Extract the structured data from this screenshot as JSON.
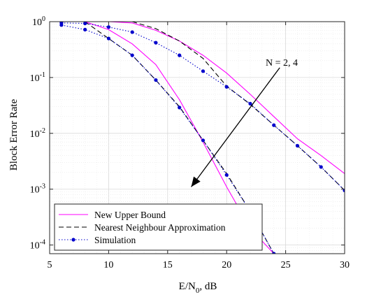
{
  "chart_data": {
    "type": "line",
    "xlabel": "E/N",
    "xlabel_sub": "0",
    "xlabel_suffix": ", dB",
    "ylabel": "Block Error Rate",
    "xlim": [
      5,
      30
    ],
    "ylim": [
      7e-05,
      1
    ],
    "yscale": "log",
    "grid": true,
    "x_ticks": [
      5,
      10,
      15,
      20,
      25,
      30
    ],
    "y_ticks": [
      {
        "value": 1,
        "base": "10",
        "exp": "0"
      },
      {
        "value": 0.1,
        "base": "10",
        "exp": "-1"
      },
      {
        "value": 0.01,
        "base": "10",
        "exp": "-2"
      },
      {
        "value": 0.001,
        "base": "10",
        "exp": "-3"
      },
      {
        "value": 0.0001,
        "base": "10",
        "exp": "-4"
      }
    ],
    "legend": {
      "placement": "bottom-left",
      "entries": [
        {
          "label": "New Upper Bound",
          "color": "#ff00ff",
          "style": "solid",
          "marker": false
        },
        {
          "label": "Nearest Neighbour Approximation",
          "color": "#000000",
          "style": "dashed",
          "marker": false
        },
        {
          "label": "Simulation",
          "color": "#0000cc",
          "style": "dotted",
          "marker": true
        }
      ]
    },
    "annotation": {
      "text": "N = 2, 4",
      "arrow_from": [
        24.5,
        0.15
      ],
      "arrow_to": [
        17.0,
        0.0011
      ]
    },
    "series": [
      {
        "group": "New Upper Bound",
        "color": "#ff00ff",
        "style": "solid",
        "marker": false,
        "x": [
          5,
          8,
          10,
          12,
          14,
          16,
          18,
          20,
          22,
          24,
          25
        ],
        "y": [
          1,
          1,
          0.72,
          0.4,
          0.17,
          0.04,
          0.007,
          0.0011,
          0.0002,
          7e-05,
          4e-05
        ]
      },
      {
        "group": "New Upper Bound",
        "color": "#ff00ff",
        "style": "solid",
        "marker": false,
        "x": [
          5,
          10,
          12,
          14,
          16,
          18,
          20,
          22,
          24,
          26,
          28,
          30
        ],
        "y": [
          1,
          1,
          0.95,
          0.7,
          0.45,
          0.25,
          0.12,
          0.05,
          0.02,
          0.008,
          0.004,
          0.0019
        ]
      },
      {
        "group": "Nearest Neighbour Approximation",
        "color": "#000000",
        "style": "dashed",
        "marker": false,
        "x": [
          8,
          10,
          12,
          14,
          16,
          18,
          20,
          22,
          24
        ],
        "y": [
          1,
          0.5,
          0.25,
          0.09,
          0.03,
          0.0075,
          0.0019,
          0.0004,
          7e-05
        ]
      },
      {
        "group": "Nearest Neighbour Approximation",
        "color": "#000000",
        "style": "dashed",
        "marker": false,
        "x": [
          12,
          14,
          16,
          18,
          20,
          22,
          24,
          26,
          28,
          30
        ],
        "y": [
          1,
          0.75,
          0.45,
          0.22,
          0.07,
          0.033,
          0.014,
          0.006,
          0.0025,
          0.00095
        ]
      },
      {
        "group": "Simulation",
        "color": "#0000cc",
        "style": "dotted",
        "marker": true,
        "x": [
          6,
          8,
          10,
          12,
          14,
          16,
          18,
          20,
          22,
          24
        ],
        "y": [
          0.87,
          0.72,
          0.5,
          0.25,
          0.09,
          0.029,
          0.0075,
          0.0018,
          0.0004,
          7e-05
        ]
      },
      {
        "group": "Simulation",
        "color": "#0000cc",
        "style": "dotted",
        "marker": true,
        "x": [
          6,
          8,
          10,
          12,
          14,
          16,
          18,
          20,
          22,
          24,
          26,
          28,
          30
        ],
        "y": [
          0.95,
          0.93,
          0.8,
          0.65,
          0.42,
          0.25,
          0.13,
          0.068,
          0.034,
          0.014,
          0.006,
          0.0025,
          0.00095
        ]
      }
    ]
  }
}
